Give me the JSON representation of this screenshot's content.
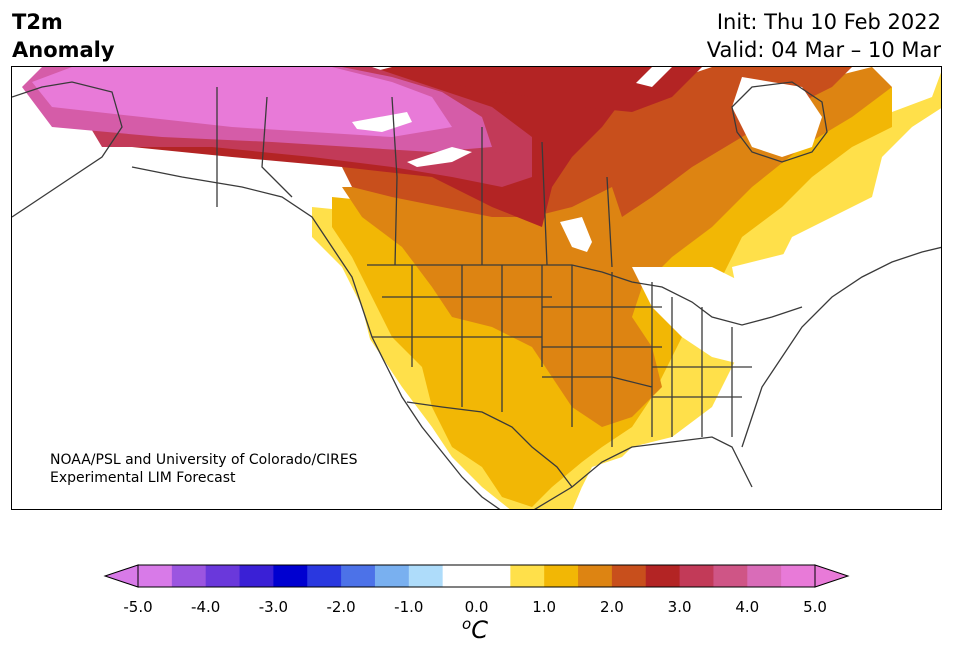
{
  "header": {
    "title_line1": "T2m",
    "title_line2": "Anomaly",
    "init": "Init: Thu 10 Feb 2022",
    "valid": "Valid: 04 Mar – 10 Mar"
  },
  "map": {
    "credit_line1": "NOAA/PSL and University of Colorado/CIRES",
    "credit_line2": "Experimental LIM Forecast",
    "region": "North America",
    "colors": {
      "lightpink": "#e87ad8",
      "pink": "#d55ca8",
      "magenta": "#c7406e",
      "red": "#b32424",
      "darkorange": "#c84f1c",
      "orange": "#dd8412",
      "gold": "#f2b705",
      "yellow": "#ffe04a",
      "white": "#ffffff"
    }
  },
  "colorbar": {
    "unit": "°C",
    "unit_display": "oC",
    "ticks": [
      "-5.0",
      "-4.0",
      "-3.0",
      "-2.0",
      "-1.0",
      "0.0",
      "1.0",
      "2.0",
      "3.0",
      "4.0",
      "5.0"
    ],
    "segments": [
      "#d87ae8",
      "#9b55e0",
      "#6a38db",
      "#3a20d6",
      "#0000d0",
      "#2a38e0",
      "#4c72e8",
      "#79b0f0",
      "#aedcfa",
      "#ffffff",
      "#ffffff",
      "#ffe04a",
      "#f2b705",
      "#dd8412",
      "#c84f1c",
      "#b32424",
      "#c23a58",
      "#cf5586",
      "#d96cb8",
      "#e87ad8"
    ]
  }
}
